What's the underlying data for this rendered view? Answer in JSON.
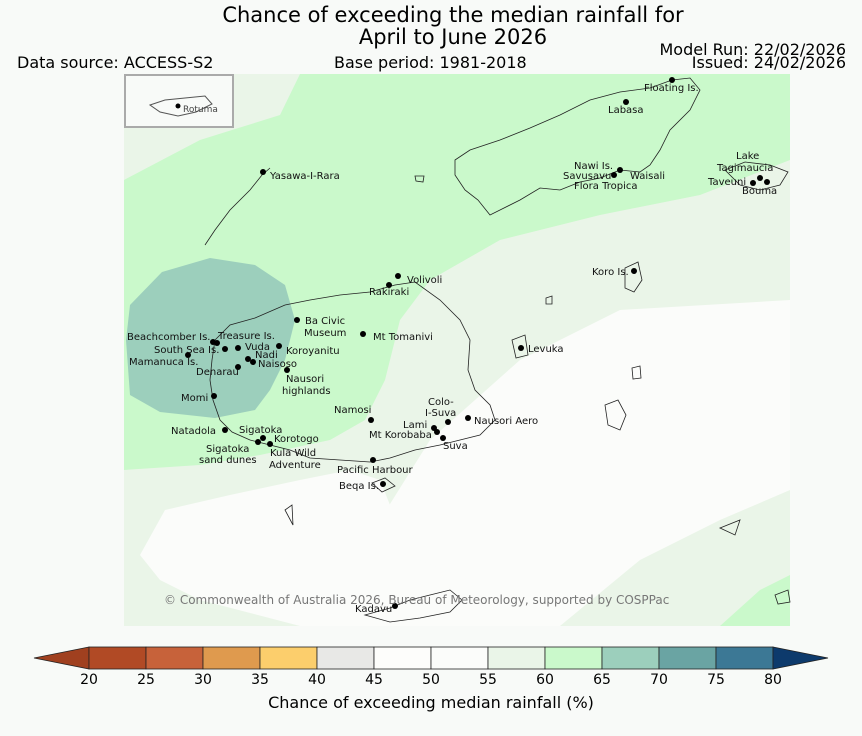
{
  "title_line1": "Chance of exceeding the median rainfall for",
  "title_line2": "April to June 2026",
  "data_source": "Data source: ACCESS-S2",
  "base_period": "Base period: 1981-2018",
  "model_run": "Model Run: 22/02/2026",
  "issued": "Issued: 24/02/2026",
  "inset_label": "Rotuma",
  "copyright": "© Commonwealth of Australia 2026, Bureau of Meteorology, supported by COSPPac",
  "colorbar": {
    "title": "Chance of exceeding median rainfall (%)",
    "ticks": [
      "20",
      "25",
      "30",
      "35",
      "40",
      "45",
      "50",
      "55",
      "60",
      "65",
      "70",
      "75",
      "80"
    ],
    "colors": [
      "#a0401f",
      "#b14a25",
      "#c7623a",
      "#df9a4e",
      "#fcce6c",
      "#e8e8e6",
      "#fdfdfb",
      "#fbfcfa",
      "#eaf5e8",
      "#caf9cb",
      "#9ccfbc",
      "#6aa4a3",
      "#3c7895",
      "#0d3a6c"
    ]
  },
  "places": [
    {
      "name": "Floating Is."
    },
    {
      "name": "Labasa"
    },
    {
      "name": "Yasawa-I-Rara"
    },
    {
      "name": "Nawi Is."
    },
    {
      "name": "Savusavu"
    },
    {
      "name": "Waisali"
    },
    {
      "name": "Flora Tropica"
    },
    {
      "name": "Lake"
    },
    {
      "name": "Tagimaucia"
    },
    {
      "name": "Taveuni"
    },
    {
      "name": "Bouma"
    },
    {
      "name": "Koro Is."
    },
    {
      "name": "Volivoli"
    },
    {
      "name": "Rakiraki"
    },
    {
      "name": "Ba Civic"
    },
    {
      "name": "Museum"
    },
    {
      "name": "Mt Tomanivi"
    },
    {
      "name": "Beachcomber Is."
    },
    {
      "name": "Treasure Is."
    },
    {
      "name": "South Sea Is."
    },
    {
      "name": "Vuda"
    },
    {
      "name": "Koroyanitu"
    },
    {
      "name": "Mamanuca Is."
    },
    {
      "name": "Nadi"
    },
    {
      "name": "Naisoso"
    },
    {
      "name": "Denarau"
    },
    {
      "name": "Nausori"
    },
    {
      "name": "highlands"
    },
    {
      "name": "Levuka"
    },
    {
      "name": "Momi"
    },
    {
      "name": "Namosi"
    },
    {
      "name": "Colo-"
    },
    {
      "name": "I-Suva"
    },
    {
      "name": "Lami"
    },
    {
      "name": "Nausori Aero"
    },
    {
      "name": "Mt Korobaba"
    },
    {
      "name": "Suva"
    },
    {
      "name": "Natadola"
    },
    {
      "name": "Sigatoka"
    },
    {
      "name": "Korotogo"
    },
    {
      "name": "Sigatoka"
    },
    {
      "name": "sand dunes"
    },
    {
      "name": "Kula Wild"
    },
    {
      "name": "Adventure"
    },
    {
      "name": "Pacific Harbour"
    },
    {
      "name": "Beqa Is."
    },
    {
      "name": "Kadavu"
    }
  ]
}
